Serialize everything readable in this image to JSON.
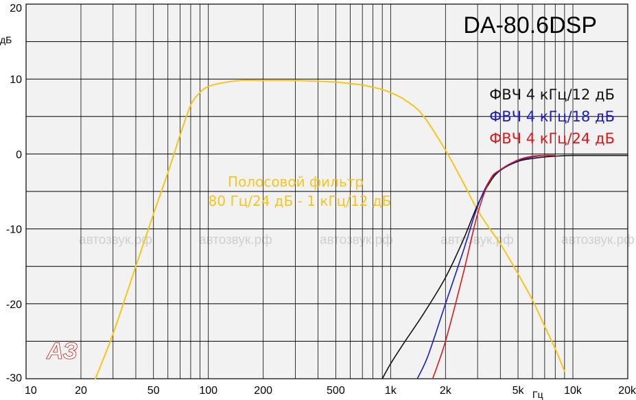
{
  "chart_data": {
    "type": "line",
    "title": "DA-80.6DSP",
    "ylabel": "дБ",
    "xlabel": "Гц",
    "xscale": "log",
    "xlim": [
      10,
      20000
    ],
    "ylim": [
      -30,
      20
    ],
    "y_ticks": [
      {
        "value": 20,
        "label": "20"
      },
      {
        "value": 10,
        "label": "10"
      },
      {
        "value": 0,
        "label": "0"
      },
      {
        "value": -10,
        "label": "-10"
      },
      {
        "value": -20,
        "label": "-20"
      },
      {
        "value": -30,
        "label": "-30"
      }
    ],
    "x_ticks": [
      {
        "value": 10,
        "label": "10"
      },
      {
        "value": 20,
        "label": "20"
      },
      {
        "value": 50,
        "label": "50"
      },
      {
        "value": 100,
        "label": "100"
      },
      {
        "value": 200,
        "label": "200"
      },
      {
        "value": 500,
        "label": "500"
      },
      {
        "value": 1000,
        "label": "1k"
      },
      {
        "value": 2000,
        "label": "2k"
      },
      {
        "value": 5000,
        "label": "5k"
      },
      {
        "value": 10000,
        "label": "10k"
      },
      {
        "value": 20000,
        "label": "20k"
      }
    ],
    "series": [
      {
        "name": "Полосовой фильтр",
        "color": "#f5c518",
        "x": [
          24,
          30,
          40,
          50,
          60,
          70,
          80,
          90,
          100,
          120,
          150,
          200,
          300,
          400,
          500,
          600,
          700,
          800,
          900,
          1000,
          1200,
          1500,
          2000,
          2500,
          3000,
          3500,
          4000,
          5000,
          6000,
          7000,
          8000,
          9000
        ],
        "y": [
          -30,
          -24,
          -15,
          -8,
          -2.5,
          2.5,
          6.5,
          8.2,
          9.0,
          9.5,
          9.8,
          9.8,
          9.8,
          9.7,
          9.6,
          9.4,
          9.2,
          8.9,
          8.6,
          8.2,
          7.2,
          5.2,
          0.5,
          -3.8,
          -7.5,
          -10.0,
          -12.0,
          -16.0,
          -19.5,
          -23.0,
          -26.0,
          -29.0
        ]
      },
      {
        "name": "ФВЧ 4 кГц/12 дБ",
        "color": "#111111",
        "x": [
          900,
          1000,
          1200,
          1500,
          2000,
          2500,
          3000,
          3500,
          4000,
          5000,
          6000,
          7000,
          8000,
          10000,
          20000
        ],
        "y": [
          -30,
          -28,
          -25,
          -21.5,
          -16.5,
          -11.5,
          -6.8,
          -3.8,
          -2.2,
          -1.0,
          -0.6,
          -0.4,
          -0.3,
          -0.2,
          -0.2
        ]
      },
      {
        "name": "ФВЧ 4 кГц/18 дБ",
        "color": "#1a1acc",
        "x": [
          1400,
          1600,
          2000,
          2500,
          3000,
          3500,
          4000,
          5000,
          6000,
          7000,
          8000
        ],
        "y": [
          -30,
          -27,
          -20,
          -13,
          -7,
          -3.5,
          -2.2,
          -0.9,
          -0.4,
          -0.2,
          -0.2
        ]
      },
      {
        "name": "ФВЧ 4 кГц/24 дБ",
        "color": "#e01515",
        "x": [
          1700,
          2000,
          2500,
          3000,
          3500,
          4000,
          5000,
          6000,
          7000,
          8000
        ],
        "y": [
          -30,
          -25,
          -16,
          -8,
          -3.5,
          -2.1,
          -0.8,
          -0.3,
          -0.2,
          -0.2
        ]
      }
    ],
    "legend": [
      "ФВЧ 4 кГц/12 дБ",
      "ФВЧ 4 кГц/18 дБ",
      "ФВЧ 4 кГц/24 дБ"
    ],
    "legend_position": "top-right",
    "annotation": [
      "Полосовой фильтр",
      "80 Гц/24 дБ - 1 кГц/12 дБ"
    ],
    "annotation_color": "#f5c518",
    "watermark_text": "автозвук.рф",
    "logo_text": "АЗ"
  }
}
